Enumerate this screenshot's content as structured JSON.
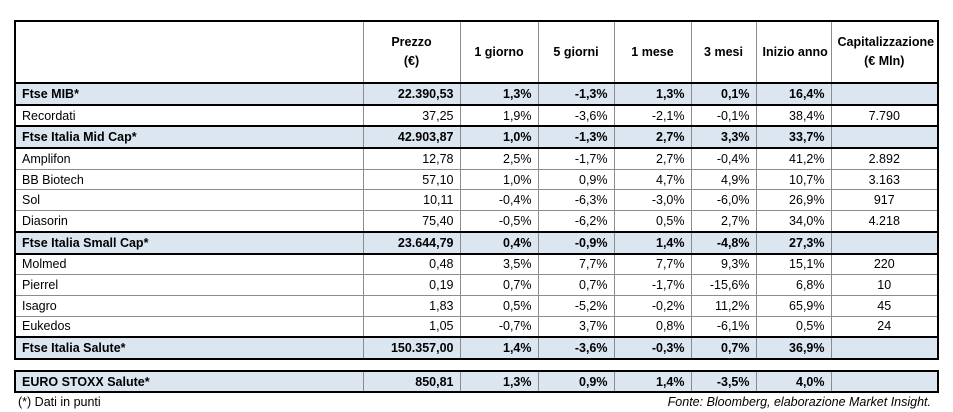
{
  "table": {
    "columns": [
      [
        "Prezzo",
        "(€)"
      ],
      [
        "1 giorno"
      ],
      [
        "5 giorni"
      ],
      [
        "1 mese"
      ],
      [
        "3 mesi"
      ],
      [
        "Inizio anno"
      ],
      [
        "Capitalizzazione",
        "(€ Mln)"
      ]
    ],
    "rows": [
      {
        "bold": true,
        "cells": [
          "Ftse MIB*",
          "22.390,53",
          "1,3%",
          "-1,3%",
          "1,3%",
          "0,1%",
          "16,4%"
        ]
      },
      {
        "bold": false,
        "cells": [
          "Recordati",
          "37,25",
          "1,9%",
          "-3,6%",
          "-2,1%",
          "-0,1%",
          "38,4%",
          "7.790"
        ]
      },
      {
        "bold": true,
        "cells": [
          "Ftse Italia Mid Cap*",
          "42.903,87",
          "1,0%",
          "-1,3%",
          "2,7%",
          "3,3%",
          "33,7%"
        ]
      },
      {
        "bold": false,
        "cells": [
          "Amplifon",
          "12,78",
          "2,5%",
          "-1,7%",
          "2,7%",
          "-0,4%",
          "41,2%",
          "2.892"
        ]
      },
      {
        "bold": false,
        "cells": [
          "BB Biotech",
          "57,10",
          "1,0%",
          "0,9%",
          "4,7%",
          "4,9%",
          "10,7%",
          "3.163"
        ]
      },
      {
        "bold": false,
        "cells": [
          "Sol",
          "10,11",
          "-0,4%",
          "-6,3%",
          "-3,0%",
          "-6,0%",
          "26,9%",
          "917"
        ]
      },
      {
        "bold": false,
        "cells": [
          "Diasorin",
          "75,40",
          "-0,5%",
          "-6,2%",
          "0,5%",
          "2,7%",
          "34,0%",
          "4.218"
        ]
      },
      {
        "bold": true,
        "cells": [
          "Ftse Italia Small Cap*",
          "23.644,79",
          "0,4%",
          "-0,9%",
          "1,4%",
          "-4,8%",
          "27,3%"
        ]
      },
      {
        "bold": false,
        "cells": [
          "Molmed",
          "0,48",
          "3,5%",
          "7,7%",
          "7,7%",
          "9,3%",
          "15,1%",
          "220"
        ]
      },
      {
        "bold": false,
        "cells": [
          "Pierrel",
          "0,19",
          "0,7%",
          "0,7%",
          "-1,7%",
          "-15,6%",
          "6,8%",
          "10"
        ]
      },
      {
        "bold": false,
        "cells": [
          "Isagro",
          "1,83",
          "0,5%",
          "-5,2%",
          "-0,2%",
          "11,2%",
          "65,9%",
          "45"
        ]
      },
      {
        "bold": false,
        "cells": [
          "Eukedos",
          "1,05",
          "-0,7%",
          "3,7%",
          "0,8%",
          "-6,1%",
          "0,5%",
          "24"
        ]
      },
      {
        "bold": true,
        "cells": [
          "Ftse Italia Salute*",
          "150.357,00",
          "1,4%",
          "-3,6%",
          "-0,3%",
          "0,7%",
          "36,9%"
        ]
      }
    ],
    "summary_row": [
      "EURO STOXX Salute*",
      "850,81",
      "1,3%",
      "0,9%",
      "1,4%",
      "-3,5%",
      "4,0%"
    ]
  },
  "footnote": "(*) Dati in punti",
  "source": "Fonte: Bloomberg, elaborazione Market Insight."
}
